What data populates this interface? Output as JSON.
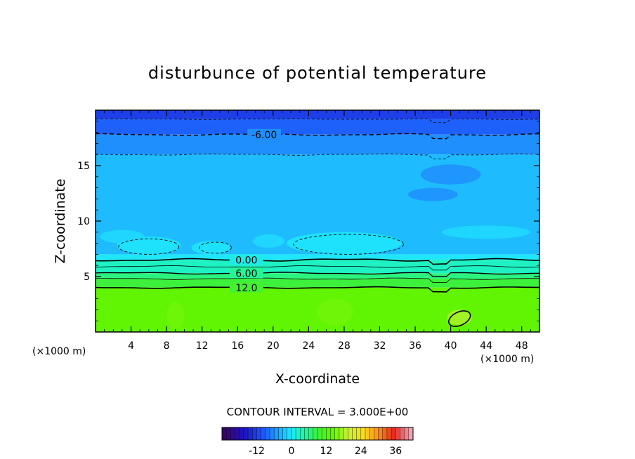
{
  "chart_data": {
    "type": "heatmap",
    "title": "disturbunce of potential temperature",
    "xlabel": "X-coordinate",
    "ylabel": "Z-coordinate",
    "x_unit": "(×1000 m)",
    "xlim": [
      0,
      50
    ],
    "ylim": [
      0,
      20
    ],
    "x_ticks": [
      4,
      8,
      12,
      16,
      20,
      24,
      28,
      32,
      36,
      40,
      44,
      48
    ],
    "x_tick_labels": [
      "4",
      "8",
      "12",
      "16",
      "20",
      "24",
      "28",
      "32",
      "36",
      "40",
      "44",
      "48"
    ],
    "y_ticks": [
      5,
      10,
      15
    ],
    "y_tick_labels": [
      "5",
      "10",
      "15"
    ],
    "contour_interval_text": "CONTOUR INTERVAL = 3.000E+00",
    "contour_labels": [
      {
        "text": "-6.00",
        "x": 19,
        "z": 17.8
      },
      {
        "text": "0.00",
        "x": 17,
        "z": 6.5
      },
      {
        "text": "6.00",
        "x": 17,
        "z": 5.3
      },
      {
        "text": "12.0",
        "x": 17,
        "z": 4.0
      }
    ],
    "colorbar": {
      "range": [
        -24,
        42
      ],
      "ticks": [
        -12,
        0,
        12,
        24,
        36
      ],
      "tick_labels": [
        "-12",
        "0",
        "12",
        "24",
        "36"
      ]
    },
    "field_levels": [
      {
        "z_from": 19.2,
        "z_to": 20,
        "value": -12
      },
      {
        "z_from": 17.8,
        "z_to": 19.2,
        "value": -9
      },
      {
        "z_from": 16,
        "z_to": 17.8,
        "value": -6
      },
      {
        "z_from": 7,
        "z_to": 16,
        "value": -3
      },
      {
        "z_from": 6.5,
        "z_to": 7,
        "value": 0
      },
      {
        "z_from": 5.3,
        "z_to": 6.5,
        "value": 3
      },
      {
        "z_from": 4.8,
        "z_to": 5.3,
        "value": 6
      },
      {
        "z_from": 4,
        "z_to": 4.8,
        "value": 9
      },
      {
        "z_from": 0,
        "z_to": 4,
        "value": 14
      }
    ]
  },
  "colors": {
    "deep_blue": "#1e5cf5",
    "mid_blue": "#2a8cff",
    "sky_blue": "#1fb7ff",
    "light_blue": "#1ad2ff",
    "cyan": "#1ef5f0",
    "teal": "#1ef0b4",
    "green_light": "#2af07a",
    "green_mid": "#3cf23a",
    "green": "#4cf500"
  }
}
